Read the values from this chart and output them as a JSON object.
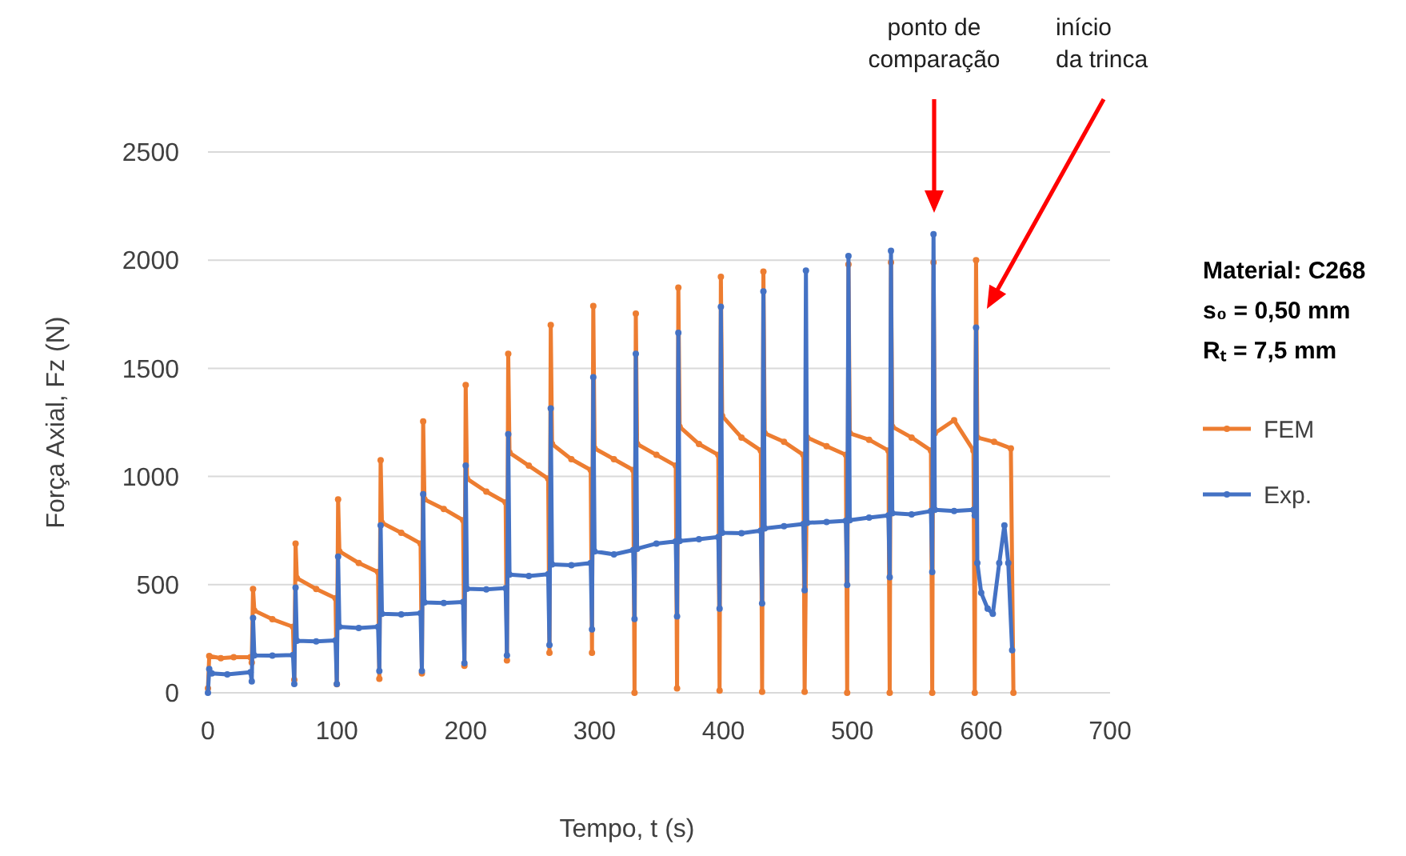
{
  "chart_data": {
    "type": "line",
    "xlabel": "Tempo, t (s)",
    "ylabel": "Força Axial, Fz (N)",
    "xlim": [
      0,
      700
    ],
    "ylim": [
      0,
      2500
    ],
    "xticks": [
      0,
      100,
      200,
      300,
      400,
      500,
      600,
      700
    ],
    "yticks": [
      0,
      500,
      1000,
      1500,
      2000,
      2500
    ],
    "grid": "y",
    "legend": "right",
    "marker": "circle",
    "line_style": "solid",
    "series": [
      {
        "name": "FEM",
        "color": "#ed7d31",
        "x": [
          0,
          1,
          10,
          20,
          33,
          34,
          35,
          36,
          50,
          66,
          67,
          68,
          69,
          84,
          99,
          100,
          101,
          102,
          117,
          132,
          133,
          134,
          135,
          150,
          165,
          166,
          167,
          168,
          183,
          198,
          199,
          200,
          201,
          216,
          231,
          232,
          233,
          234,
          249,
          264,
          265,
          266,
          267,
          282,
          297,
          298,
          299,
          300,
          315,
          330,
          331,
          332,
          333,
          348,
          363,
          364,
          365,
          366,
          381,
          396,
          397,
          398,
          399,
          414,
          429,
          430,
          431,
          432,
          447,
          462,
          463,
          464,
          465,
          480,
          495,
          496,
          497,
          498,
          513,
          528,
          529,
          530,
          531,
          546,
          561,
          562,
          563,
          564,
          579,
          594,
          595,
          596,
          597,
          610,
          623,
          625
        ],
        "values": [
          20,
          170,
          160,
          165,
          165,
          140,
          480,
          380,
          340,
          305,
          60,
          690,
          530,
          480,
          437,
          40,
          894,
          654,
          600,
          558,
          65,
          1075,
          786,
          740,
          690,
          90,
          1255,
          894,
          850,
          798,
          125,
          1423,
          990,
          930,
          880,
          150,
          1567,
          1110,
          1050,
          990,
          185,
          1700,
          1150,
          1080,
          1030,
          185,
          1788,
          1130,
          1080,
          1030,
          0,
          1753,
          1150,
          1100,
          1050,
          20,
          1873,
          1230,
          1150,
          1100,
          10,
          1923,
          1280,
          1180,
          1120,
          5,
          1947,
          1200,
          1160,
          1100,
          5,
          null,
          1180,
          1140,
          1100,
          0,
          1980,
          1200,
          1170,
          1120,
          0,
          1990,
          1230,
          1180,
          1120,
          0,
          1990,
          1200,
          1260,
          1120,
          0,
          2000,
          1180,
          1160,
          1130,
          0
        ]
      },
      {
        "name": "Exp.",
        "color": "#4472c4",
        "x": [
          0,
          1,
          3,
          15,
          33,
          34,
          35,
          36,
          50,
          66,
          67,
          68,
          69,
          84,
          99,
          100,
          101,
          102,
          117,
          132,
          133,
          134,
          135,
          150,
          165,
          166,
          167,
          168,
          183,
          198,
          199,
          200,
          201,
          216,
          231,
          232,
          233,
          234,
          249,
          264,
          265,
          266,
          267,
          282,
          297,
          298,
          299,
          300,
          315,
          330,
          331,
          332,
          333,
          348,
          363,
          364,
          365,
          366,
          381,
          396,
          397,
          398,
          399,
          414,
          429,
          430,
          431,
          432,
          447,
          462,
          463,
          464,
          465,
          480,
          495,
          496,
          497,
          498,
          513,
          528,
          529,
          530,
          531,
          546,
          561,
          562,
          563,
          564,
          579,
          594,
          595,
          596,
          597,
          600,
          605,
          609,
          614,
          618,
          621,
          624
        ],
        "values": [
          0,
          110,
          90,
          85,
          95,
          53,
          346,
          173,
          172,
          175,
          41,
          486,
          240,
          238,
          242,
          41,
          630,
          305,
          300,
          305,
          101,
          774,
          365,
          362,
          368,
          101,
          918,
          418,
          415,
          420,
          137,
          1050,
          481,
          478,
          484,
          173,
          1195,
          546,
          540,
          548,
          221,
          1315,
          594,
          590,
          600,
          293,
          1459,
          654,
          640,
          660,
          341,
          1567,
          666,
          690,
          700,
          353,
          1664,
          702,
          710,
          720,
          389,
          1784,
          740,
          738,
          750,
          413,
          1856,
          760,
          770,
          780,
          474,
          1952,
          786,
          790,
          795,
          498,
          2019,
          798,
          810,
          820,
          534,
          2043,
          830,
          825,
          840,
          558,
          2120,
          846,
          840,
          846,
          820,
          1688,
          600,
          462,
          389,
          365,
          600,
          774,
          600,
          197
        ]
      }
    ],
    "annotations": [
      "ponto de\ncomparação",
      "início\nda trinca",
      "Material: C268",
      "s₀ = 0,50 mm",
      "Rₜ = 7,5 mm"
    ]
  }
}
